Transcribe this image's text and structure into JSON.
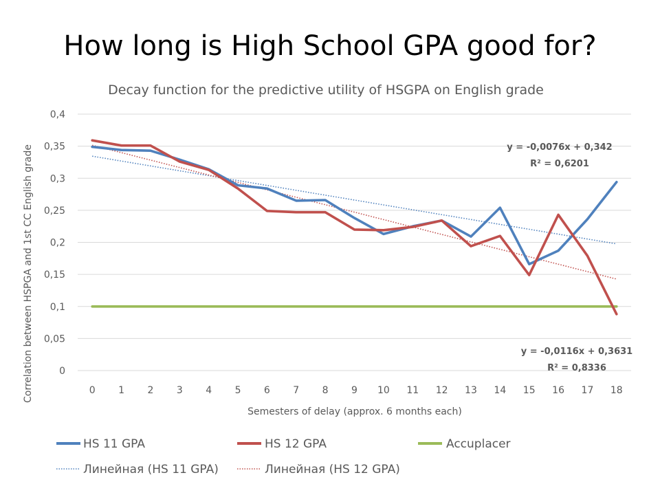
{
  "slide": {
    "title": "How long is High School GPA good for?"
  },
  "chart_data": {
    "type": "line",
    "title": "Decay function for the predictive utility of HSGPA on English grade",
    "xlabel": "Semesters of delay (approx. 6 months each)",
    "ylabel": "Correlation between HSPGA and 1st CC English grade",
    "x": [
      0,
      1,
      2,
      3,
      4,
      5,
      6,
      7,
      8,
      9,
      10,
      11,
      12,
      13,
      14,
      15,
      16,
      17,
      18
    ],
    "x_tick_labels": [
      "0",
      "1",
      "2",
      "3",
      "4",
      "5",
      "6",
      "7",
      "8",
      "9",
      "10",
      "11",
      "12",
      "13",
      "14",
      "15",
      "16",
      "17",
      "18"
    ],
    "ylim": [
      0,
      0.4
    ],
    "y_ticks": [
      0,
      0.05,
      0.1,
      0.15,
      0.2,
      0.25,
      0.3,
      0.35,
      0.4
    ],
    "y_tick_labels": [
      "0",
      "0,05",
      "0,1",
      "0,15",
      "0,2",
      "0,25",
      "0,3",
      "0,35",
      "0,4"
    ],
    "grid": true,
    "legend_position": "bottom",
    "series": [
      {
        "name": "HS 11 GPA",
        "color": "#4f81bd",
        "style": "solid",
        "values": [
          0.349,
          0.344,
          0.343,
          0.329,
          0.314,
          0.289,
          0.284,
          0.265,
          0.266,
          0.238,
          0.213,
          0.225,
          0.234,
          0.209,
          0.254,
          0.166,
          0.187,
          0.236,
          0.294
        ]
      },
      {
        "name": "HS 12 GPA",
        "color": "#c0504d",
        "style": "solid",
        "values": [
          0.359,
          0.351,
          0.351,
          0.326,
          0.313,
          0.284,
          0.249,
          0.247,
          0.247,
          0.22,
          0.219,
          0.224,
          0.234,
          0.194,
          0.21,
          0.149,
          0.243,
          0.179,
          0.088
        ]
      },
      {
        "name": "Accuplacer",
        "color": "#9bbb59",
        "style": "solid",
        "values": [
          0.1,
          0.1,
          0.1,
          0.1,
          0.1,
          0.1,
          0.1,
          0.1,
          0.1,
          0.1,
          0.1,
          0.1,
          0.1,
          0.1,
          0.1,
          0.1,
          0.1,
          0.1,
          0.1
        ]
      }
    ],
    "trendlines": [
      {
        "name": "Линейная (HS 11 GPA)",
        "color": "#4f81bd",
        "style": "dotted",
        "slope": -0.0076,
        "intercept": 0.342,
        "equation": "y = -0,0076x + 0,342",
        "r2": "R² = 0,6201"
      },
      {
        "name": "Линейная (HS 12 GPA)",
        "color": "#c0504d",
        "style": "dotted",
        "slope": -0.0116,
        "intercept": 0.3631,
        "equation": "y = -0,0116x + 0,3631",
        "r2": "R² = 0,8336"
      }
    ]
  }
}
